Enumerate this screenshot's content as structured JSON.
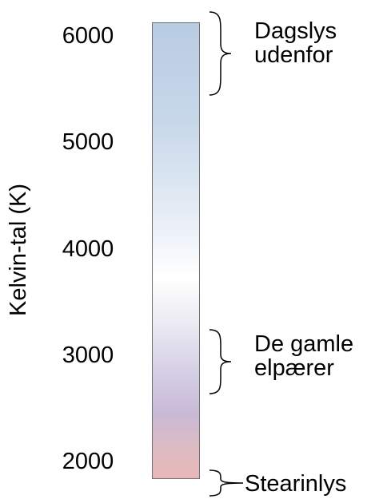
{
  "axis": {
    "title": "Kelvin-tal (K)",
    "ticks": [
      "6000",
      "5000",
      "4000",
      "3000",
      "2000"
    ]
  },
  "scale": {
    "min_kelvin": 2000,
    "max_kelvin": 6000,
    "gradient_colors": {
      "top": "#b8cce3",
      "middle": "#ffffff",
      "lower": "#c9b9d6",
      "bottom": "#e8b8b8"
    }
  },
  "annotations": [
    {
      "lines": [
        "Dagslys",
        "udenfor"
      ],
      "range_kelvin": [
        5300,
        6000
      ]
    },
    {
      "lines": [
        "De gamle",
        "elpærer"
      ],
      "range_kelvin": [
        2700,
        3200
      ]
    },
    {
      "lines": [
        "Stearinlys"
      ],
      "range_kelvin": [
        1900,
        2000
      ]
    }
  ]
}
